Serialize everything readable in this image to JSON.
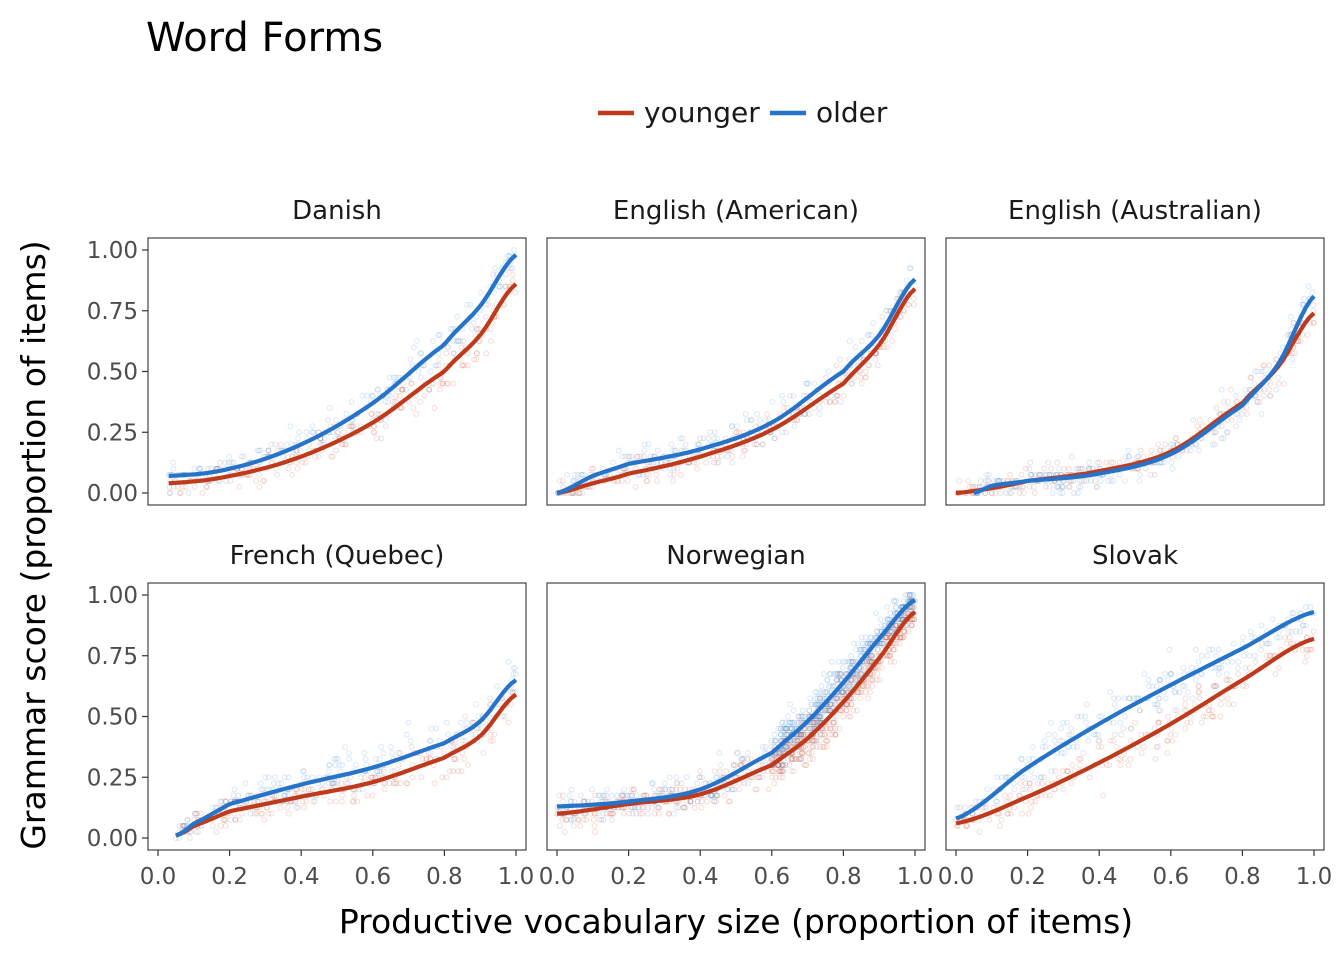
{
  "chart_data": {
    "type": "scatter",
    "title": "Word Forms",
    "xlabel": "Productive vocabulary size (proportion of items)",
    "ylabel": "Grammar score (proportion of items)",
    "xlim": [
      0,
      1
    ],
    "ylim": [
      0,
      1
    ],
    "x_ticks": [
      "0.0",
      "0.2",
      "0.4",
      "0.6",
      "0.8",
      "1.0"
    ],
    "y_ticks": [
      "0.00",
      "0.25",
      "0.50",
      "0.75",
      "1.00"
    ],
    "grid": false,
    "legend": {
      "position": "top",
      "entries": [
        {
          "name": "younger",
          "color": "#BF3A1B"
        },
        {
          "name": "older",
          "color": "#2674C9"
        }
      ]
    },
    "panels": [
      {
        "name": "Danish",
        "series": [
          {
            "name": "younger",
            "x": [
              0.03,
              0.2,
              0.4,
              0.6,
              0.8,
              0.9,
              1.0
            ],
            "y": [
              0.04,
              0.07,
              0.15,
              0.29,
              0.5,
              0.65,
              0.86
            ]
          },
          {
            "name": "older",
            "x": [
              0.03,
              0.2,
              0.4,
              0.6,
              0.8,
              0.9,
              1.0
            ],
            "y": [
              0.07,
              0.1,
              0.2,
              0.37,
              0.61,
              0.77,
              0.98
            ]
          }
        ]
      },
      {
        "name": "English (American)",
        "series": [
          {
            "name": "younger",
            "x": [
              0.0,
              0.1,
              0.2,
              0.4,
              0.6,
              0.8,
              0.9,
              1.0
            ],
            "y": [
              0.0,
              0.04,
              0.08,
              0.15,
              0.26,
              0.45,
              0.61,
              0.84
            ]
          },
          {
            "name": "older",
            "x": [
              0.0,
              0.1,
              0.2,
              0.4,
              0.6,
              0.8,
              0.9,
              1.0
            ],
            "y": [
              0.0,
              0.07,
              0.12,
              0.18,
              0.29,
              0.5,
              0.65,
              0.88
            ]
          }
        ]
      },
      {
        "name": "English (Australian)",
        "series": [
          {
            "name": "younger",
            "x": [
              0.0,
              0.1,
              0.2,
              0.4,
              0.6,
              0.8,
              0.9,
              1.0
            ],
            "y": [
              0.0,
              0.02,
              0.05,
              0.09,
              0.17,
              0.37,
              0.52,
              0.74
            ]
          },
          {
            "name": "older",
            "x": [
              0.05,
              0.1,
              0.2,
              0.4,
              0.6,
              0.8,
              0.9,
              1.0
            ],
            "y": [
              0.0,
              0.03,
              0.05,
              0.08,
              0.16,
              0.36,
              0.53,
              0.81
            ]
          }
        ]
      },
      {
        "name": "French (Quebec)",
        "series": [
          {
            "name": "younger",
            "x": [
              0.05,
              0.1,
              0.2,
              0.4,
              0.6,
              0.8,
              0.9,
              1.0
            ],
            "y": [
              0.01,
              0.05,
              0.11,
              0.17,
              0.23,
              0.33,
              0.42,
              0.59
            ]
          },
          {
            "name": "older",
            "x": [
              0.05,
              0.1,
              0.2,
              0.4,
              0.6,
              0.8,
              0.9,
              1.0
            ],
            "y": [
              0.01,
              0.06,
              0.14,
              0.22,
              0.29,
              0.39,
              0.48,
              0.65
            ]
          }
        ]
      },
      {
        "name": "Norwegian",
        "series": [
          {
            "name": "younger",
            "x": [
              0.0,
              0.2,
              0.4,
              0.6,
              0.7,
              0.8,
              0.9,
              1.0
            ],
            "y": [
              0.1,
              0.14,
              0.18,
              0.3,
              0.41,
              0.56,
              0.74,
              0.93
            ]
          },
          {
            "name": "older",
            "x": [
              0.0,
              0.2,
              0.4,
              0.6,
              0.7,
              0.8,
              0.9,
              1.0
            ],
            "y": [
              0.13,
              0.15,
              0.2,
              0.35,
              0.48,
              0.64,
              0.82,
              0.98
            ]
          }
        ]
      },
      {
        "name": "Slovak",
        "series": [
          {
            "name": "younger",
            "x": [
              0.0,
              0.2,
              0.4,
              0.6,
              0.8,
              1.0
            ],
            "y": [
              0.06,
              0.17,
              0.31,
              0.47,
              0.65,
              0.82
            ]
          },
          {
            "name": "older",
            "x": [
              0.0,
              0.2,
              0.4,
              0.6,
              0.8,
              1.0
            ],
            "y": [
              0.08,
              0.29,
              0.47,
              0.63,
              0.78,
              0.93
            ]
          }
        ]
      }
    ]
  }
}
